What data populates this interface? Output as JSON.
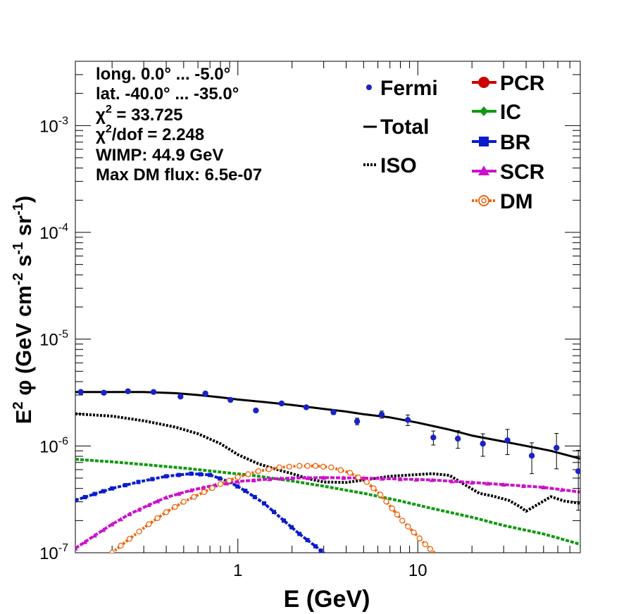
{
  "chart_data": {
    "type": "scatter",
    "x_scale": "log",
    "y_scale": "log",
    "xlim": [
      0.125,
      80
    ],
    "ylim": [
      1e-07,
      0.004
    ],
    "xlabel": "E (GeV)",
    "ylabel": {
      "base": "E",
      "sup1": "2",
      "phi": " φ (GeV cm",
      "sup2": "-2",
      "mid": " s",
      "sup3": "-1",
      "mid2": " sr",
      "sup4": "-1",
      "end": ")"
    },
    "x_ticks": [
      {
        "v": 1,
        "label": "1"
      },
      {
        "v": 10,
        "label": "10"
      }
    ],
    "y_ticks": [
      {
        "v": 1e-07,
        "base": "10",
        "exp": "-7"
      },
      {
        "v": 1e-06,
        "base": "10",
        "exp": "-6"
      },
      {
        "v": 1e-05,
        "base": "10",
        "exp": "-5"
      },
      {
        "v": 0.0001,
        "base": "10",
        "exp": "-4"
      },
      {
        "v": 0.001,
        "base": "10",
        "exp": "-3"
      }
    ],
    "info_box": {
      "lon": "long. 0.0° ... -5.0°",
      "lat": "lat. -40.0° ... -35.0°",
      "chi2_sym": "χ",
      "chi2_sup": "2",
      "chi2_val": " = 33.725",
      "chi2dof_sup": "2",
      "chi2dof_val": "/dof = 2.248",
      "wimp": "WIMP: 44.9 GeV",
      "dmflux": "Max DM flux: 6.5e-07"
    },
    "legend": {
      "fermi": "Fermi",
      "total": "Total",
      "iso": "ISO",
      "pcr": "PCR",
      "ic": "IC",
      "br": "BR",
      "scr": "SCR",
      "dm": "DM"
    },
    "colors": {
      "fermi": "#1a22c8",
      "total": "#000000",
      "iso": "#000000",
      "pcr": "#cc0000",
      "ic": "#119911",
      "br": "#0b1ccc",
      "scr": "#cc11cc",
      "dm": "#ee6611"
    },
    "fermi_points": [
      {
        "x": 0.134,
        "y": 3.2e-06,
        "err": 0
      },
      {
        "x": 0.18,
        "y": 3.15e-06,
        "err": 0
      },
      {
        "x": 0.245,
        "y": 3.25e-06,
        "err": 0
      },
      {
        "x": 0.34,
        "y": 3.2e-06,
        "err": 0
      },
      {
        "x": 0.48,
        "y": 2.9e-06,
        "err": 0
      },
      {
        "x": 0.66,
        "y": 3.1e-06,
        "err": 0
      },
      {
        "x": 0.91,
        "y": 2.7e-06,
        "err": 0
      },
      {
        "x": 1.26,
        "y": 2.15e-06,
        "err": 0
      },
      {
        "x": 1.75,
        "y": 2.5e-06,
        "err": 0
      },
      {
        "x": 2.4,
        "y": 2.3e-06,
        "err": 0
      },
      {
        "x": 3.4,
        "y": 2.07e-06,
        "err": 1e-07
      },
      {
        "x": 4.6,
        "y": 1.7e-06,
        "err": 1.2e-07
      },
      {
        "x": 6.3,
        "y": 1.97e-06,
        "err": 1.5e-07
      },
      {
        "x": 8.8,
        "y": 1.75e-06,
        "err": 2e-07
      },
      {
        "x": 12.2,
        "y": 1.2e-06,
        "err": 1.8e-07
      },
      {
        "x": 16.7,
        "y": 1.17e-06,
        "err": 2.2e-07
      },
      {
        "x": 23,
        "y": 1.05e-06,
        "err": 2.5e-07
      },
      {
        "x": 31.5,
        "y": 1.13e-06,
        "err": 3e-07
      },
      {
        "x": 43,
        "y": 8.1e-07,
        "err": 2.6e-07
      },
      {
        "x": 59,
        "y": 9.6e-07,
        "err": 3.5e-07
      },
      {
        "x": 78,
        "y": 5.8e-07,
        "err": 3.3e-07
      }
    ],
    "series": {
      "total": [
        [
          0.125,
          3.2e-06
        ],
        [
          0.2,
          3.2e-06
        ],
        [
          0.3,
          3.2e-06
        ],
        [
          0.45,
          3.12e-06
        ],
        [
          0.6,
          3e-06
        ],
        [
          0.8,
          2.85e-06
        ],
        [
          1.0,
          2.72e-06
        ],
        [
          1.5,
          2.55e-06
        ],
        [
          2,
          2.42e-06
        ],
        [
          3,
          2.22e-06
        ],
        [
          4,
          2.1e-06
        ],
        [
          5,
          1.98e-06
        ],
        [
          7,
          1.85e-06
        ],
        [
          10,
          1.65e-06
        ],
        [
          15,
          1.42e-06
        ],
        [
          20,
          1.25e-06
        ],
        [
          30,
          1.1e-06
        ],
        [
          40,
          1e-06
        ],
        [
          55,
          9e-07
        ],
        [
          80,
          7.6e-07
        ]
      ],
      "iso": [
        [
          0.125,
          2e-06
        ],
        [
          0.2,
          1.9e-06
        ],
        [
          0.3,
          1.72e-06
        ],
        [
          0.45,
          1.5e-06
        ],
        [
          0.6,
          1.3e-06
        ],
        [
          0.8,
          1.05e-06
        ],
        [
          1.0,
          8.3e-07
        ],
        [
          1.3,
          6.8e-07
        ],
        [
          1.6,
          6.1e-07
        ],
        [
          2,
          5.5e-07
        ],
        [
          2.5,
          4.9e-07
        ],
        [
          3,
          4.6e-07
        ],
        [
          4,
          4.55e-07
        ],
        [
          5,
          4.8e-07
        ],
        [
          7,
          5.2e-07
        ],
        [
          10,
          5.4e-07
        ],
        [
          12,
          5.5e-07
        ],
        [
          15,
          5.3e-07
        ],
        [
          18,
          4.4e-07
        ],
        [
          22,
          3.6e-07
        ],
        [
          26,
          3.4e-07
        ],
        [
          32,
          3.1e-07
        ],
        [
          37,
          2.7e-07
        ],
        [
          40,
          2.45e-07
        ],
        [
          45,
          2.75e-07
        ],
        [
          55,
          3.35e-07
        ],
        [
          65,
          3.05e-07
        ],
        [
          80,
          2.9e-07
        ]
      ],
      "ic": [
        [
          0.125,
          7.5e-07
        ],
        [
          0.2,
          7.1e-07
        ],
        [
          0.3,
          6.7e-07
        ],
        [
          0.5,
          6.2e-07
        ],
        [
          0.8,
          5.7e-07
        ],
        [
          1.2,
          5.3e-07
        ],
        [
          2,
          4.7e-07
        ],
        [
          3,
          4.2e-07
        ],
        [
          5,
          3.6e-07
        ],
        [
          8,
          3.05e-07
        ],
        [
          12,
          2.6e-07
        ],
        [
          20,
          2.15e-07
        ],
        [
          30,
          1.8e-07
        ],
        [
          50,
          1.5e-07
        ],
        [
          80,
          1.2e-07
        ]
      ],
      "br": [
        [
          0.125,
          3.1e-07
        ],
        [
          0.16,
          3.55e-07
        ],
        [
          0.2,
          4e-07
        ],
        [
          0.28,
          4.6e-07
        ],
        [
          0.4,
          5.2e-07
        ],
        [
          0.55,
          5.5e-07
        ],
        [
          0.7,
          5.35e-07
        ],
        [
          0.9,
          4.6e-07
        ],
        [
          1.1,
          3.8e-07
        ],
        [
          1.4,
          2.9e-07
        ],
        [
          1.8,
          2e-07
        ],
        [
          2.2,
          1.5e-07
        ],
        [
          2.7,
          1.15e-07
        ],
        [
          3.1,
          9.5e-08
        ]
      ],
      "scr": [
        [
          0.125,
          1.1e-07
        ],
        [
          0.16,
          1.45e-07
        ],
        [
          0.2,
          1.85e-07
        ],
        [
          0.25,
          2.3e-07
        ],
        [
          0.32,
          2.8e-07
        ],
        [
          0.4,
          3.3e-07
        ],
        [
          0.55,
          3.85e-07
        ],
        [
          0.75,
          4.3e-07
        ],
        [
          1,
          4.65e-07
        ],
        [
          1.5,
          4.9e-07
        ],
        [
          2,
          5e-07
        ],
        [
          3,
          5.05e-07
        ],
        [
          5,
          5e-07
        ],
        [
          8,
          4.9e-07
        ],
        [
          12,
          4.8e-07
        ],
        [
          20,
          4.55e-07
        ],
        [
          30,
          4.35e-07
        ],
        [
          50,
          4.1e-07
        ],
        [
          80,
          3.7e-07
        ]
      ],
      "dm": [
        [
          0.2,
          1e-07
        ],
        [
          0.25,
          1.35e-07
        ],
        [
          0.32,
          1.85e-07
        ],
        [
          0.4,
          2.4e-07
        ],
        [
          0.5,
          3e-07
        ],
        [
          0.65,
          3.7e-07
        ],
        [
          0.8,
          4.4e-07
        ],
        [
          1.0,
          5.1e-07
        ],
        [
          1.3,
          5.8e-07
        ],
        [
          1.7,
          6.3e-07
        ],
        [
          2.2,
          6.5e-07
        ],
        [
          2.7,
          6.5e-07
        ],
        [
          3.3,
          6.3e-07
        ],
        [
          4.2,
          5.6e-07
        ],
        [
          5.2,
          4.6e-07
        ],
        [
          6.2,
          3.5e-07
        ],
        [
          7.2,
          2.6e-07
        ],
        [
          8.2,
          2e-07
        ],
        [
          9.5,
          1.55e-07
        ],
        [
          11,
          1.2e-07
        ],
        [
          12.5,
          9.8e-08
        ]
      ]
    }
  }
}
